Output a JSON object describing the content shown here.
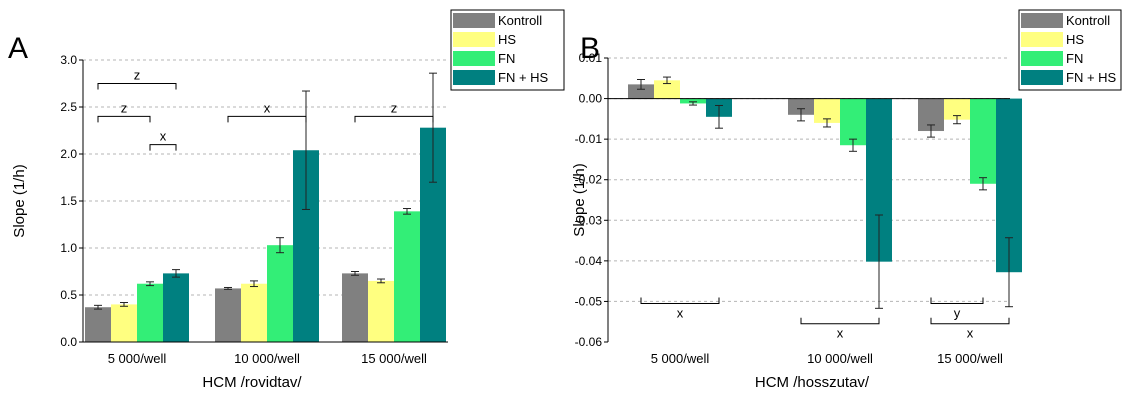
{
  "colors": {
    "Kontroll": "#808080",
    "HS": "#ffff80",
    "FN": "#33ee77",
    "FN + HS": "#008080"
  },
  "chart_data": [
    {
      "type": "bar",
      "panel_label": "A",
      "title": "",
      "xlabel": "HCM /rovidtav/",
      "ylabel": "Slope (1/h)",
      "ylim": [
        0,
        3.0
      ],
      "yticks": [
        "0.0",
        "0.5",
        "1.0",
        "1.5",
        "2.0",
        "2.5",
        "3.0"
      ],
      "grid": "dashed horizontal",
      "legend": "top-right",
      "categories": [
        "5 000/well",
        "10 000/well",
        "15 000/well"
      ],
      "series": [
        {
          "name": "Kontroll",
          "values": [
            0.37,
            0.57,
            0.73
          ],
          "errors": [
            0.02,
            0.01,
            0.02
          ]
        },
        {
          "name": "HS",
          "values": [
            0.4,
            0.62,
            0.65
          ],
          "errors": [
            0.02,
            0.03,
            0.02
          ]
        },
        {
          "name": "FN",
          "values": [
            0.62,
            1.03,
            1.39
          ],
          "errors": [
            0.02,
            0.08,
            0.03
          ]
        },
        {
          "name": "FN + HS",
          "values": [
            0.73,
            2.04,
            2.28
          ],
          "errors": [
            0.04,
            0.63,
            0.58
          ]
        }
      ],
      "annotations": [
        {
          "text": "z",
          "group": 0,
          "from": 0,
          "to": 3,
          "level": 2.75,
          "side": "above"
        },
        {
          "text": "z",
          "group": 0,
          "from": 0,
          "to": 2,
          "level": 2.4,
          "side": "above"
        },
        {
          "text": "x",
          "group": 0,
          "from": 2,
          "to": 3,
          "level": 2.1,
          "side": "above"
        },
        {
          "text": "x",
          "group": 1,
          "from": 0,
          "to": 3,
          "level": 2.4,
          "side": "above"
        },
        {
          "text": "z",
          "group": 2,
          "from": 0,
          "to": 3,
          "level": 2.4,
          "side": "above"
        }
      ]
    },
    {
      "type": "bar",
      "panel_label": "B",
      "title": "",
      "xlabel": "HCM /hosszutav/",
      "ylabel": "Slope (1/h)",
      "ylim": [
        -0.06,
        0.01
      ],
      "yticks": [
        "-0.06",
        "-0.05",
        "-0.04",
        "-0.03",
        "-0.02",
        "-0.01",
        "0.00",
        "0.01"
      ],
      "grid": "dashed horizontal",
      "legend": "top-right",
      "categories": [
        "5 000/well",
        "10 000/well",
        "15 000/well"
      ],
      "series": [
        {
          "name": "Kontroll",
          "values": [
            0.0035,
            -0.004,
            -0.008
          ],
          "errors": [
            0.0012,
            0.0015,
            0.0015
          ]
        },
        {
          "name": "HS",
          "values": [
            0.0045,
            -0.006,
            -0.0052
          ],
          "errors": [
            0.0008,
            0.001,
            0.001
          ]
        },
        {
          "name": "FN",
          "values": [
            -0.0012,
            -0.0115,
            -0.021
          ],
          "errors": [
            0.0004,
            0.0015,
            0.0015
          ]
        },
        {
          "name": "FN + HS",
          "values": [
            -0.0045,
            -0.0402,
            -0.0428
          ],
          "errors": [
            0.0028,
            0.0115,
            0.0085
          ]
        }
      ],
      "annotations": [
        {
          "text": "x",
          "group": 0,
          "from": 0,
          "to": 3,
          "level": -0.0505,
          "side": "below"
        },
        {
          "text": "x",
          "group": 1,
          "from": 0,
          "to": 3,
          "level": -0.0555,
          "side": "below"
        },
        {
          "text": "y",
          "group": 2,
          "from": 0,
          "to": 2,
          "level": -0.0505,
          "side": "below"
        },
        {
          "text": "x",
          "group": 2,
          "from": 0,
          "to": 3,
          "level": -0.0555,
          "side": "below"
        }
      ]
    }
  ]
}
